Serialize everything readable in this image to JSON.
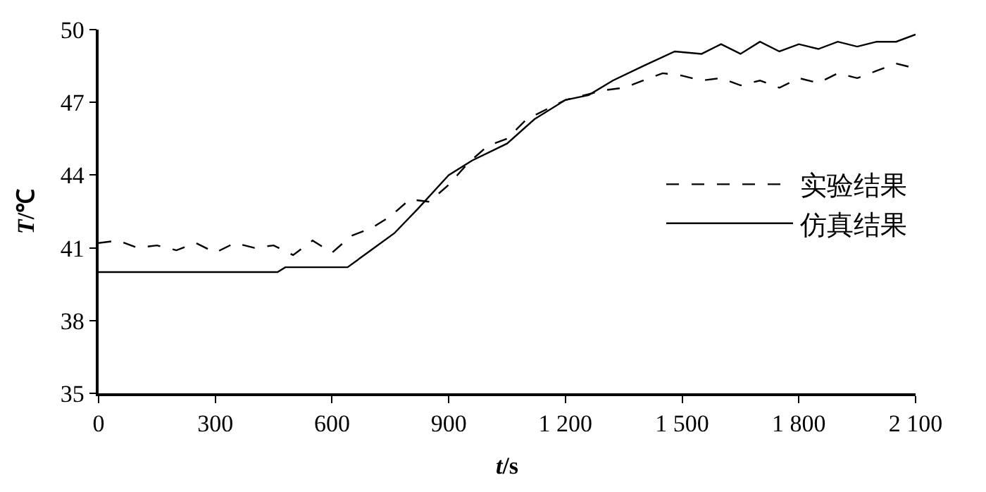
{
  "chart_data": {
    "type": "line",
    "xlabel": "t/s",
    "ylabel": "T/℃",
    "xlim": [
      0,
      2100
    ],
    "ylim": [
      35,
      50
    ],
    "xticks": [
      0,
      300,
      600,
      900,
      {
        "value": 1200,
        "label": "1 200"
      },
      {
        "value": 1500,
        "label": "1 500"
      },
      {
        "value": 1800,
        "label": "1 800"
      },
      {
        "value": 2100,
        "label": "2 100"
      }
    ],
    "yticks": [
      35,
      38,
      41,
      44,
      47,
      50
    ],
    "legend": "right",
    "marker": "none",
    "series": [
      {
        "name": "实验结果",
        "color": "#000000",
        "line_style": "dashed",
        "x": [
          0,
          50,
          100,
          150,
          200,
          250,
          300,
          350,
          400,
          450,
          500,
          550,
          600,
          650,
          700,
          750,
          800,
          850,
          900,
          950,
          1000,
          1050,
          1100,
          1150,
          1200,
          1250,
          1300,
          1350,
          1400,
          1450,
          1500,
          1550,
          1600,
          1650,
          1700,
          1750,
          1800,
          1850,
          1900,
          1950,
          2000,
          2050,
          2100
        ],
        "values": [
          41.2,
          41.3,
          41.0,
          41.1,
          40.9,
          41.2,
          40.8,
          41.2,
          41.0,
          41.1,
          40.7,
          41.3,
          40.8,
          41.5,
          41.8,
          42.3,
          43.0,
          42.9,
          43.6,
          44.5,
          45.2,
          45.5,
          46.3,
          46.7,
          47.1,
          47.3,
          47.5,
          47.6,
          47.9,
          48.2,
          48.1,
          47.9,
          48.0,
          47.7,
          47.9,
          47.6,
          48.0,
          47.8,
          48.2,
          48.0,
          48.3,
          48.6,
          48.4
        ]
      },
      {
        "name": "仿真结果",
        "color": "#000000",
        "line_style": "solid",
        "x": [
          0,
          460,
          480,
          640,
          700,
          760,
          820,
          900,
          960,
          1050,
          1120,
          1200,
          1260,
          1322,
          1400,
          1481,
          1550,
          1600,
          1650,
          1700,
          1750,
          1800,
          1850,
          1900,
          1950,
          2000,
          2050,
          2100
        ],
        "values": [
          40.0,
          40.0,
          40.2,
          40.2,
          40.9,
          41.6,
          42.6,
          44.0,
          44.6,
          45.3,
          46.3,
          47.1,
          47.3,
          47.9,
          48.5,
          49.1,
          49.0,
          49.4,
          49.0,
          49.5,
          49.1,
          49.4,
          49.2,
          49.5,
          49.3,
          49.5,
          49.5,
          49.8
        ]
      }
    ]
  }
}
